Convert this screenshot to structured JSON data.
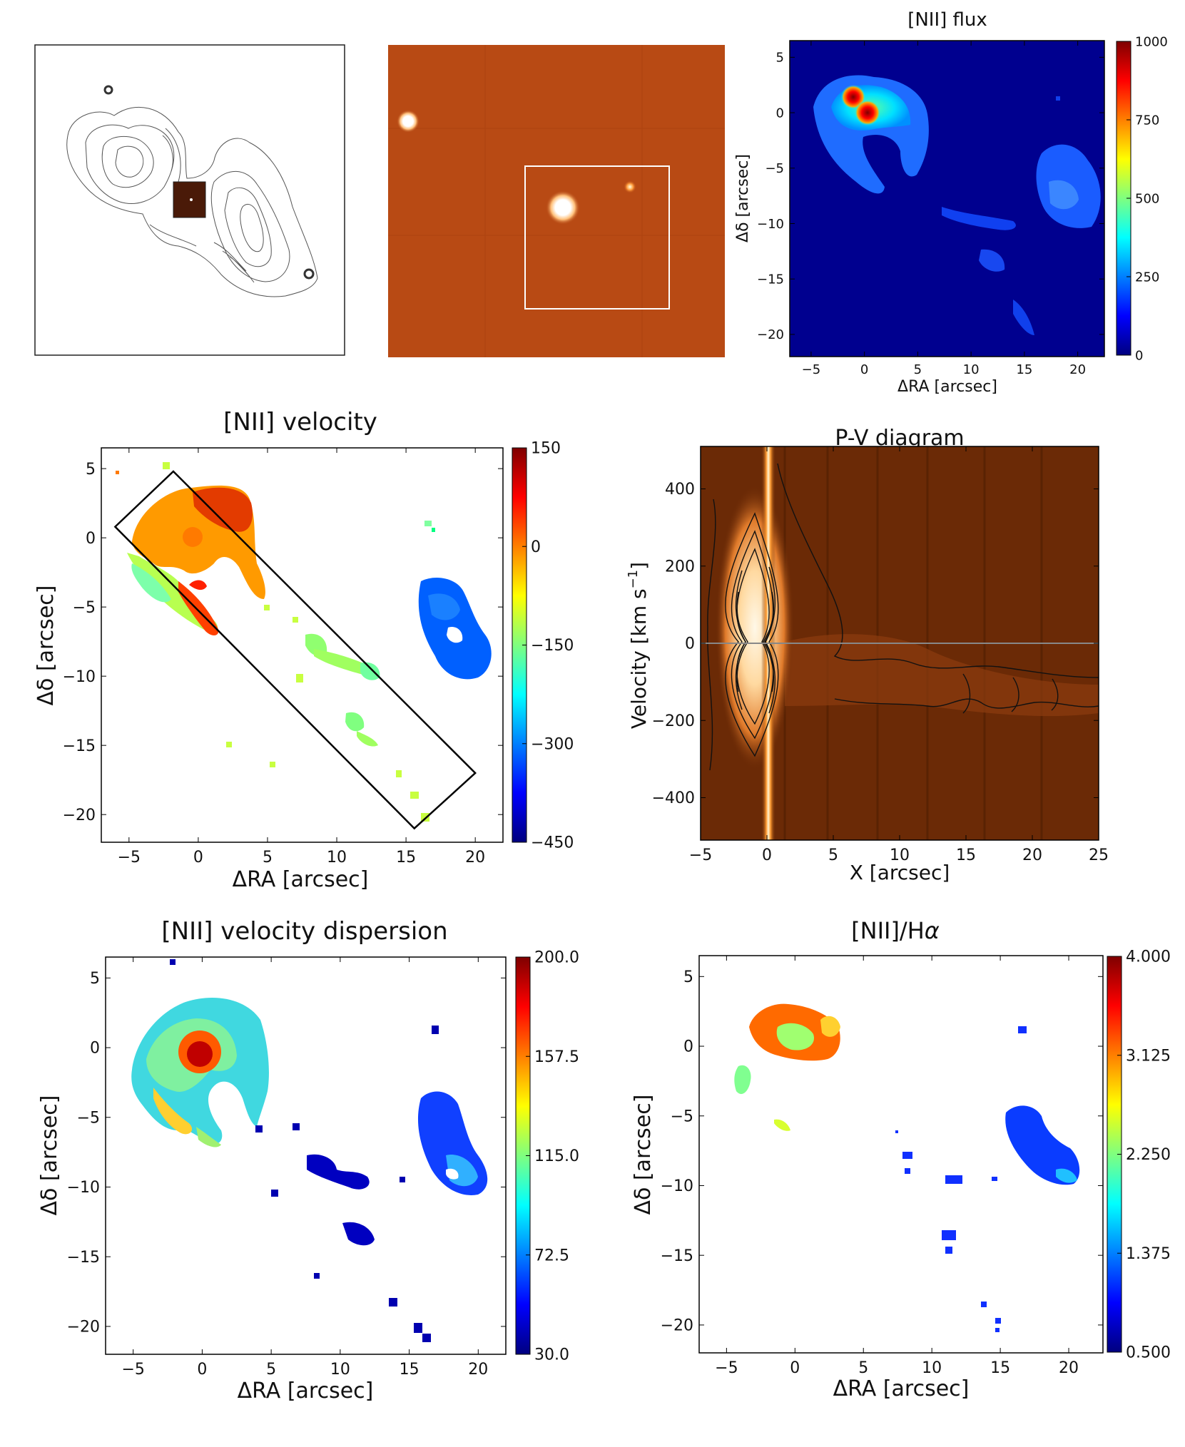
{
  "chart_data": [
    {
      "type": "image",
      "panel": "contour-map",
      "title": "",
      "description_marks": [
        "contour lines",
        "inset square"
      ]
    },
    {
      "type": "image",
      "panel": "broadband-image",
      "title": "",
      "description_marks": [
        "bright source",
        "field-of-view box"
      ]
    },
    {
      "type": "heatmap",
      "panel": "nii-flux",
      "title": "[NII] flux",
      "xlabel": "ΔRA [arcsec]",
      "ylabel": "Δδ [arcsec]",
      "xlim": [
        -7,
        22.5
      ],
      "ylim": [
        -22,
        6.5
      ],
      "xticks": [
        -5,
        0,
        5,
        10,
        15,
        20
      ],
      "yticks": [
        5,
        0,
        -5,
        -10,
        -15,
        -20
      ],
      "colorbar": {
        "min": 0,
        "max": 1000,
        "ticks": [
          1000,
          750,
          500,
          250,
          0
        ]
      }
    },
    {
      "type": "heatmap",
      "panel": "nii-velocity",
      "title": "[NII] velocity",
      "xlabel": "ΔRA [arcsec]",
      "ylabel": "Δδ [arcsec]",
      "xlim": [
        -7,
        22
      ],
      "ylim": [
        -22,
        6.5
      ],
      "xticks": [
        -5,
        0,
        5,
        10,
        15,
        20
      ],
      "yticks": [
        5,
        0,
        -5,
        -10,
        -15,
        -20
      ],
      "colorbar": {
        "min": -450,
        "max": 150,
        "ticks": [
          150,
          0,
          -150,
          -300,
          -450
        ]
      },
      "slit_corners_data": [
        [
          -6,
          0.8
        ],
        [
          -1.8,
          4.8
        ],
        [
          20,
          -17
        ],
        [
          15.6,
          -21
        ]
      ]
    },
    {
      "type": "heatmap",
      "panel": "pv-diagram",
      "title": "P-V diagram",
      "xlabel": "X [arcsec]",
      "ylabel": "Velocity [km s⁻¹]",
      "ylabel_main": "Velocity [km s",
      "ylabel_exp": "−1",
      "ylabel_close": "]",
      "xlim": [
        -5,
        25
      ],
      "ylim": [
        -510,
        510
      ],
      "xticks": [
        -5,
        0,
        5,
        10,
        15,
        20,
        25
      ],
      "yticks": [
        400,
        200,
        0,
        -200,
        -400
      ],
      "zero_line_velocity": 0
    },
    {
      "type": "heatmap",
      "panel": "nii-dispersion",
      "title": "[NII] velocity dispersion",
      "xlabel": "ΔRA [arcsec]",
      "ylabel": "Δδ [arcsec]",
      "xlim": [
        -7,
        22
      ],
      "ylim": [
        -22,
        6.5
      ],
      "xticks": [
        -5,
        0,
        5,
        10,
        15,
        20
      ],
      "yticks": [
        5,
        0,
        -5,
        -10,
        -15,
        -20
      ],
      "colorbar": {
        "min": 30.0,
        "max": 200.0,
        "ticks": [
          "200.0",
          "157.5",
          "115.0",
          "72.5",
          "30.0"
        ]
      }
    },
    {
      "type": "heatmap",
      "panel": "nii-halpha",
      "title": "[NII]/Hα",
      "title_main": "[NII]/H",
      "title_greek": "α",
      "xlabel": "ΔRA [arcsec]",
      "ylabel": "Δδ [arcsec]",
      "xlim": [
        -7,
        22.5
      ],
      "ylim": [
        -22,
        6.5
      ],
      "xticks": [
        -5,
        0,
        5,
        10,
        15,
        20
      ],
      "yticks": [
        5,
        0,
        -5,
        -10,
        -15,
        -20
      ],
      "colorbar": {
        "min": 0.5,
        "max": 4.0,
        "ticks": [
          "4.000",
          "3.125",
          "2.250",
          "1.375",
          "0.500"
        ]
      }
    }
  ],
  "colors": {
    "jet": [
      "#00007f",
      "#0000ff",
      "#007fff",
      "#00ffff",
      "#7fff7f",
      "#ffff00",
      "#ff7f00",
      "#ff0000",
      "#7f0000"
    ],
    "pv_background": "#6b2a06",
    "image_background": "#b84a14"
  }
}
